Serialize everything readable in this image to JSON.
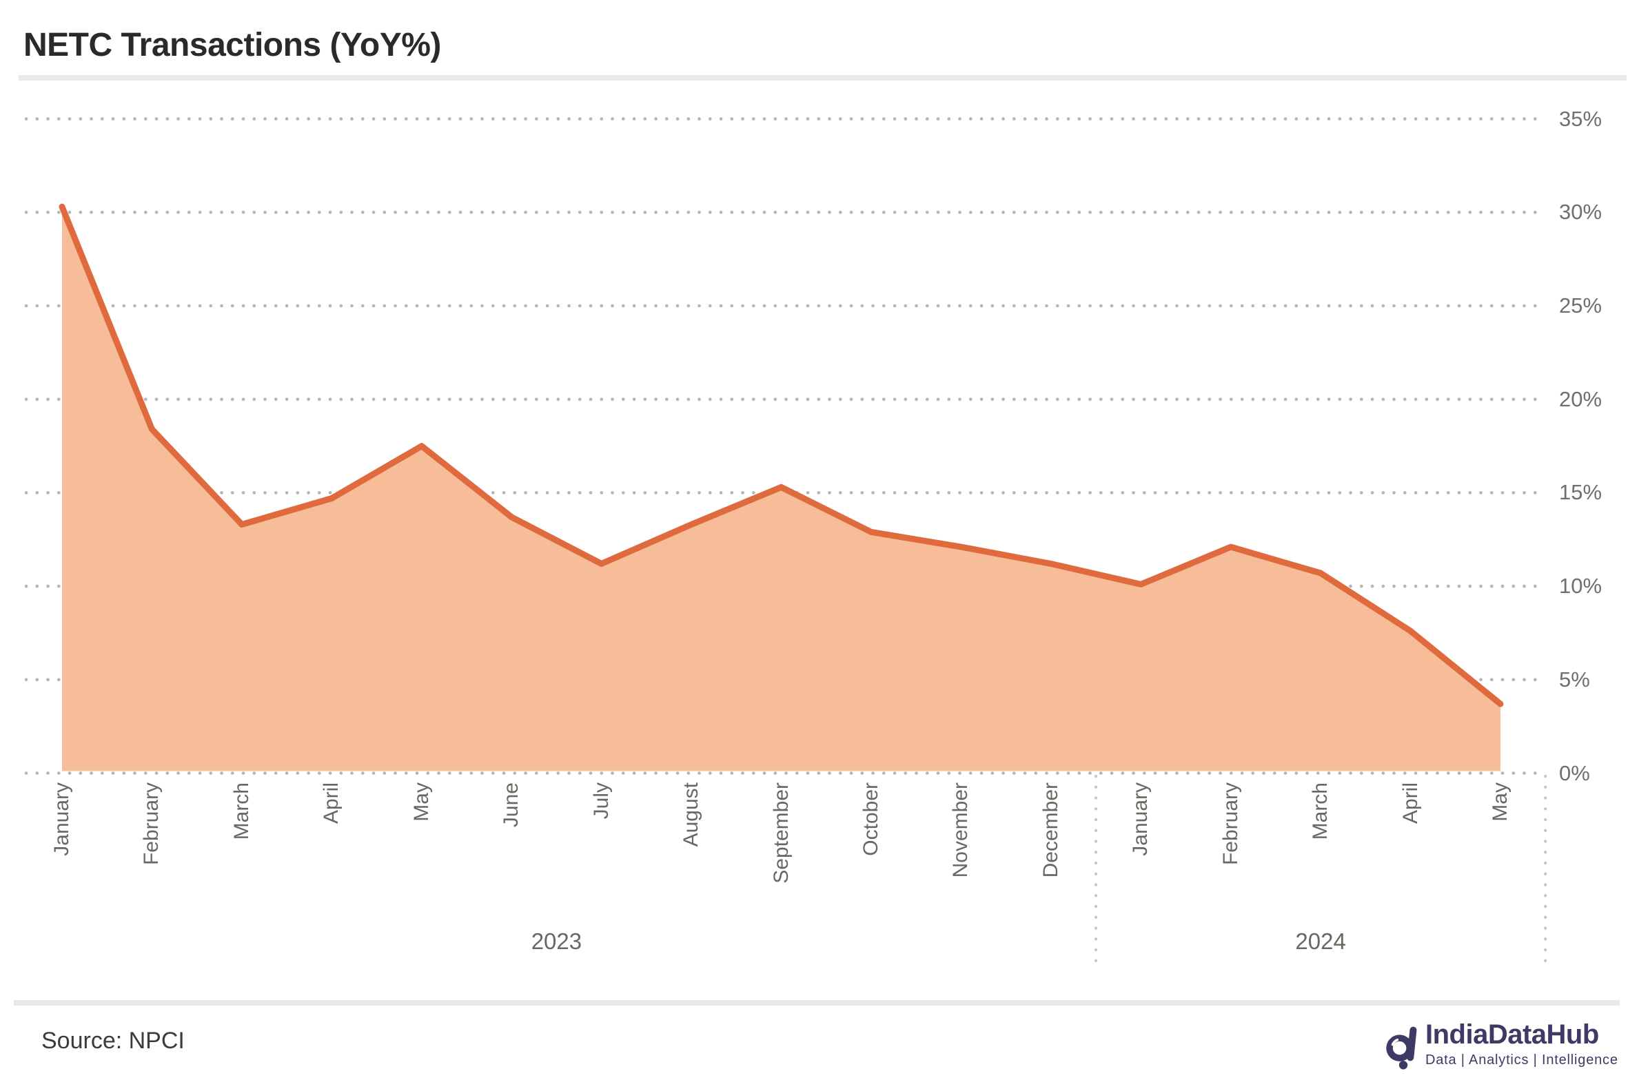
{
  "header": {
    "title": "NETC Transactions (YoY%)"
  },
  "chart_data": {
    "type": "area",
    "title": "NETC Transactions (YoY%)",
    "unit": "%",
    "categories": [
      "January",
      "February",
      "March",
      "April",
      "May",
      "June",
      "July",
      "August",
      "September",
      "October",
      "November",
      "December",
      "January",
      "February",
      "March",
      "April",
      "May"
    ],
    "year_groups": [
      {
        "label": "2023",
        "count": 12
      },
      {
        "label": "2024",
        "count": 5
      }
    ],
    "values": [
      30.3,
      18.4,
      13.3,
      14.7,
      17.5,
      13.7,
      11.2,
      13.3,
      15.3,
      12.9,
      12.1,
      11.2,
      10.1,
      12.1,
      10.7,
      7.6,
      3.7
    ],
    "ylim": [
      0,
      35
    ],
    "ytick_labels": [
      "0%",
      "5%",
      "10%",
      "15%",
      "20%",
      "25%",
      "30%",
      "35%"
    ],
    "grid": "dotted-horizontal",
    "legend": "none",
    "colors": {
      "line": "#df6a3e",
      "fill": "#f7bd99",
      "grid_dots": "#b5b5b5",
      "separator_dots": "#c6c6c6",
      "tick_text": "#6f6f6f",
      "month_text": "#6b6661",
      "year_text": "#6b6661"
    }
  },
  "footer": {
    "source": "Source: NPCI",
    "logo": {
      "name": "IndiaDataHub",
      "tagline": "Data | Analytics | Intelligence",
      "color": "#3d3b66"
    }
  }
}
